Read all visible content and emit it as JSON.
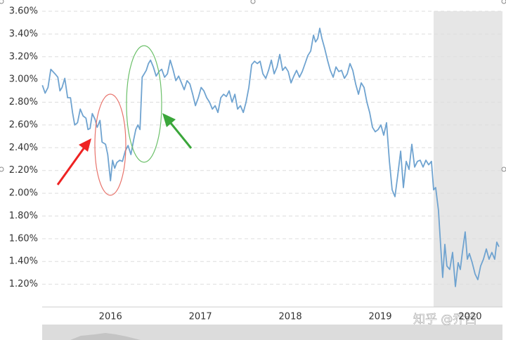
{
  "chart_data": {
    "type": "line",
    "x": [
      2015.242,
      2015.273,
      2015.305,
      2015.336,
      2015.383,
      2015.414,
      2015.438,
      2015.461,
      2015.492,
      2015.523,
      2015.555,
      2015.578,
      2015.602,
      2015.633,
      2015.664,
      2015.695,
      2015.727,
      2015.75,
      2015.773,
      2015.797,
      2015.828,
      2015.852,
      2015.883,
      2015.906,
      2015.945,
      2015.969,
      2016.0,
      2016.023,
      2016.047,
      2016.07,
      2016.102,
      2016.133,
      2016.164,
      2016.195,
      2016.227,
      2016.258,
      2016.281,
      2016.305,
      2016.328,
      2016.352,
      2016.375,
      2016.398,
      2016.422,
      2016.445,
      2016.477,
      2016.508,
      2016.539,
      2016.57,
      2016.602,
      2016.633,
      2016.664,
      2016.695,
      2016.727,
      2016.758,
      2016.789,
      2016.82,
      2016.852,
      2016.883,
      2016.914,
      2016.945,
      2016.977,
      2017.008,
      2017.039,
      2017.07,
      2017.102,
      2017.133,
      2017.164,
      2017.195,
      2017.227,
      2017.258,
      2017.289,
      2017.32,
      2017.352,
      2017.383,
      2017.414,
      2017.445,
      2017.477,
      2017.508,
      2017.539,
      2017.57,
      2017.602,
      2017.633,
      2017.664,
      2017.695,
      2017.727,
      2017.758,
      2017.789,
      2017.82,
      2017.852,
      2017.883,
      2017.914,
      2017.945,
      2017.977,
      2018.008,
      2018.039,
      2018.07,
      2018.102,
      2018.133,
      2018.164,
      2018.195,
      2018.227,
      2018.258,
      2018.281,
      2018.305,
      2018.328,
      2018.352,
      2018.383,
      2018.414,
      2018.445,
      2018.477,
      2018.508,
      2018.539,
      2018.57,
      2018.602,
      2018.633,
      2018.664,
      2018.695,
      2018.727,
      2018.758,
      2018.789,
      2018.82,
      2018.852,
      2018.883,
      2018.914,
      2018.945,
      2018.977,
      2019.008,
      2019.039,
      2019.07,
      2019.102,
      2019.133,
      2019.164,
      2019.195,
      2019.227,
      2019.258,
      2019.289,
      2019.32,
      2019.352,
      2019.383,
      2019.414,
      2019.445,
      2019.477,
      2019.508,
      2019.539,
      2019.57,
      2019.594,
      2019.617,
      2019.648,
      2019.672,
      2019.695,
      2019.719,
      2019.742,
      2019.773,
      2019.805,
      2019.836,
      2019.867,
      2019.891,
      2019.914,
      2019.945,
      2019.969,
      2019.992,
      2020.023,
      2020.055,
      2020.086,
      2020.117,
      2020.148,
      2020.18,
      2020.211,
      2020.242,
      2020.273,
      2020.297,
      2020.32
    ],
    "values": [
      2.95,
      2.88,
      2.93,
      3.09,
      3.05,
      3.02,
      2.9,
      2.93,
      3.01,
      2.84,
      2.84,
      2.71,
      2.6,
      2.62,
      2.74,
      2.68,
      2.66,
      2.56,
      2.57,
      2.7,
      2.65,
      2.58,
      2.64,
      2.45,
      2.43,
      2.34,
      2.11,
      2.29,
      2.22,
      2.27,
      2.29,
      2.28,
      2.37,
      2.42,
      2.34,
      2.47,
      2.56,
      2.6,
      2.56,
      3.02,
      3.05,
      3.08,
      3.14,
      3.17,
      3.11,
      3.03,
      3.07,
      3.09,
      3.02,
      3.05,
      3.17,
      3.09,
      2.99,
      3.03,
      2.97,
      2.91,
      2.99,
      2.96,
      2.87,
      2.77,
      2.84,
      2.93,
      2.9,
      2.84,
      2.8,
      2.74,
      2.77,
      2.71,
      2.84,
      2.87,
      2.85,
      2.9,
      2.8,
      2.87,
      2.74,
      2.77,
      2.71,
      2.8,
      2.93,
      3.13,
      3.16,
      3.14,
      3.16,
      3.05,
      3.01,
      3.08,
      3.17,
      3.05,
      3.11,
      3.22,
      3.08,
      3.11,
      3.07,
      2.97,
      3.03,
      3.08,
      3.02,
      3.07,
      3.14,
      3.21,
      3.25,
      3.39,
      3.33,
      3.36,
      3.45,
      3.36,
      3.27,
      3.17,
      3.08,
      3.02,
      3.11,
      3.07,
      3.08,
      3.01,
      3.05,
      3.14,
      3.08,
      2.96,
      2.87,
      2.97,
      2.93,
      2.8,
      2.71,
      2.58,
      2.54,
      2.56,
      2.6,
      2.51,
      2.62,
      2.28,
      2.03,
      1.97,
      2.16,
      2.37,
      2.05,
      2.28,
      2.21,
      2.43,
      2.23,
      2.28,
      2.29,
      2.23,
      2.29,
      2.25,
      2.28,
      2.03,
      2.05,
      1.85,
      1.54,
      1.26,
      1.55,
      1.36,
      1.33,
      1.48,
      1.18,
      1.39,
      1.33,
      1.48,
      1.66,
      1.42,
      1.47,
      1.39,
      1.29,
      1.24,
      1.36,
      1.42,
      1.51,
      1.42,
      1.48,
      1.42,
      1.57,
      1.53
    ],
    "color": "#6fa3d0",
    "xlim": [
      2015.24,
      2020.36
    ],
    "xticks": [
      2016,
      2017,
      2018,
      2019,
      2020
    ],
    "ylim": [
      1.0,
      3.6
    ],
    "yticks": [
      {
        "value": 1.2,
        "label": "1.20%"
      },
      {
        "value": 1.4,
        "label": "1.40%"
      },
      {
        "value": 1.6,
        "label": "1.60%"
      },
      {
        "value": 1.8,
        "label": "1.80%"
      },
      {
        "value": 2.0,
        "label": "2.00%"
      },
      {
        "value": 2.2,
        "label": "2.20%"
      },
      {
        "value": 2.4,
        "label": "2.40%"
      },
      {
        "value": 2.6,
        "label": "2.60%"
      },
      {
        "value": 2.8,
        "label": "2.80%"
      },
      {
        "value": 3.0,
        "label": "3.00%"
      },
      {
        "value": 3.2,
        "label": "3.20%"
      },
      {
        "value": 3.4,
        "label": "3.40%"
      },
      {
        "value": 3.6,
        "label": "3.60%"
      }
    ],
    "grid": true
  },
  "watermark": "知乎 @乔西"
}
